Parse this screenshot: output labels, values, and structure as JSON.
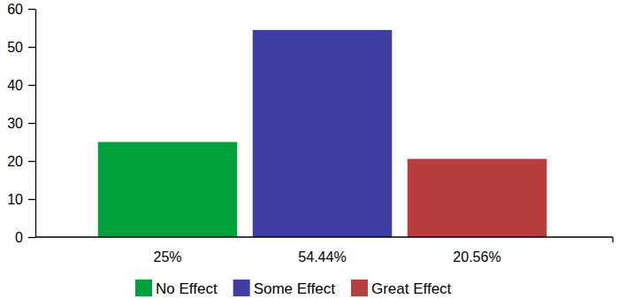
{
  "chart_data": {
    "type": "bar",
    "categories": [
      "No Effect",
      "Some Effect",
      "Great Effect"
    ],
    "values": [
      25,
      54.44,
      20.56
    ],
    "value_labels": [
      "25%",
      "54.44%",
      "20.56%"
    ],
    "colors": [
      "#00a13b",
      "#3f3fa3",
      "#b83e3e"
    ],
    "ylim": [
      0,
      60
    ],
    "yticks": [
      0,
      10,
      20,
      30,
      40,
      50,
      60
    ],
    "grid": false,
    "data_labels": true,
    "tick_labels": "y",
    "legend": "bottom"
  }
}
